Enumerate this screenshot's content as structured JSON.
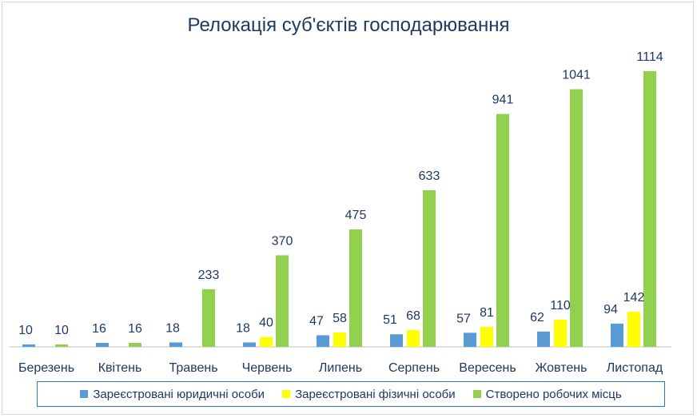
{
  "chart_data": {
    "type": "bar",
    "title": "Релокація суб'єктів господарювання",
    "categories": [
      "Березень",
      "Квітень",
      "Травень",
      "Червень",
      "Липень",
      "Серпень",
      "Вересень",
      "Жовтень",
      "Листопад"
    ],
    "series": [
      {
        "name": "Зареєстровані юридичні  особи",
        "color": "#5b9bd5",
        "values": [
          10,
          16,
          18,
          18,
          47,
          51,
          57,
          62,
          94
        ]
      },
      {
        "name": "Зареєстровані фізичні особи",
        "color": "#ffff00",
        "values": [
          null,
          null,
          null,
          40,
          58,
          68,
          81,
          110,
          142
        ]
      },
      {
        "name": "Створено робочих місць",
        "color": "#92d050",
        "values": [
          10,
          16,
          233,
          370,
          475,
          633,
          941,
          1041,
          1114
        ]
      }
    ],
    "ylim": [
      0,
      1114
    ],
    "grid": false,
    "legend_position": "bottom"
  }
}
